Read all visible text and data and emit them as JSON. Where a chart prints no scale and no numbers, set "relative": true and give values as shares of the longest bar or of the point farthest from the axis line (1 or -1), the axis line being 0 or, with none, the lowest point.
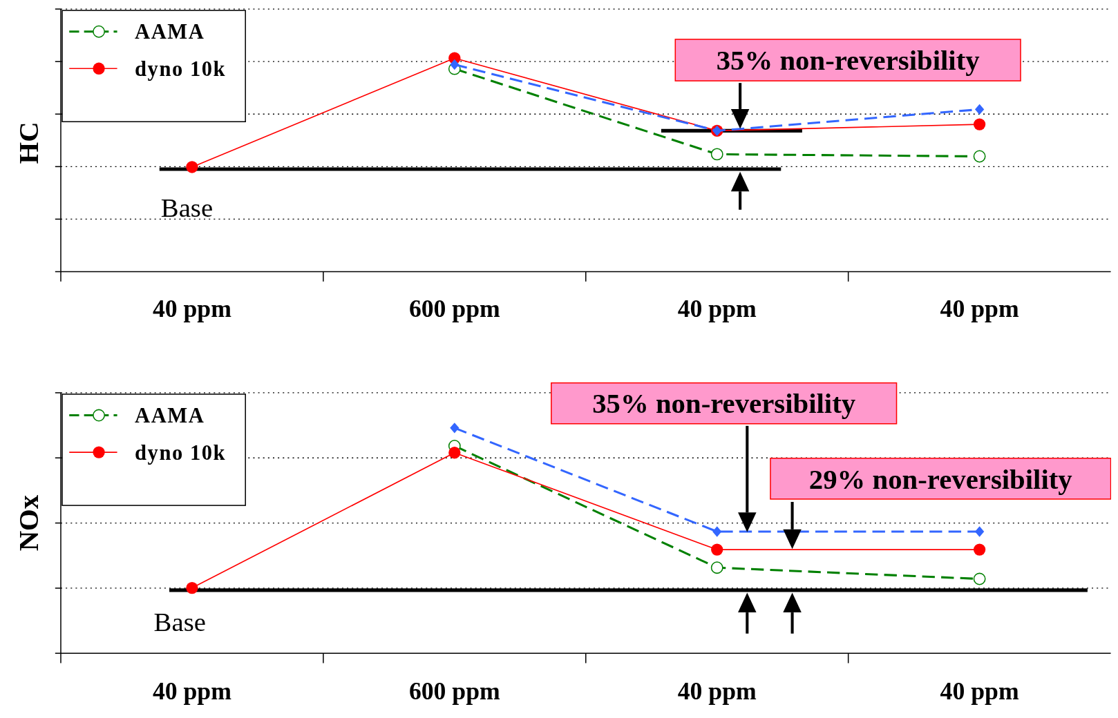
{
  "chart_data": [
    {
      "type": "line",
      "ylabel": "HC",
      "categories": [
        "40 ppm",
        "600 ppm",
        "40 ppm",
        "40 ppm"
      ],
      "relative": true,
      "grid": "y",
      "legend": "top left",
      "series": [
        {
          "name": "AAMA",
          "color": "#008000",
          "marker": "circle-open",
          "line_style": "dashed",
          "values": [
            null,
            0.95,
            0.55,
            0.54
          ]
        },
        {
          "name": "dyno 10k",
          "color": "#ff0000",
          "marker": "circle",
          "line_style": "solid",
          "values": [
            0.49,
            1,
            0.66,
            0.69
          ]
        },
        {
          "color": "#3366ff",
          "marker": "diamond",
          "line_style": "dashed",
          "values": [
            null,
            0.97,
            0.66,
            0.76
          ]
        }
      ],
      "ref_lines": [
        {
          "axis": "y",
          "value": 0.48,
          "label": "Base",
          "color": "#000000"
        },
        {
          "axis": "y",
          "value": 0.66,
          "color": "#000000"
        }
      ],
      "annotations": [
        "35% non-reversibility"
      ]
    },
    {
      "type": "line",
      "ylabel": "NOx",
      "categories": [
        "40 ppm",
        "600 ppm",
        "40 ppm",
        "40 ppm"
      ],
      "relative": true,
      "grid": "y",
      "legend": "top left",
      "series": [
        {
          "name": "AAMA",
          "color": "#008000",
          "marker": "circle-open",
          "line_style": "dashed",
          "values": [
            null,
            0.92,
            0.38,
            0.33
          ]
        },
        {
          "name": "dyno 10k",
          "color": "#ff0000",
          "marker": "circle",
          "line_style": "solid",
          "values": [
            0.29,
            0.89,
            0.46,
            0.46
          ]
        },
        {
          "color": "#3366ff",
          "marker": "diamond",
          "line_style": "dashed",
          "values": [
            null,
            1,
            0.54,
            0.54
          ]
        }
      ],
      "ref_lines": [
        {
          "axis": "y",
          "value": 0.28,
          "label": "Base",
          "color": "#000000"
        }
      ],
      "annotations": [
        "35% non-reversibility",
        "29% non-reversibility"
      ]
    }
  ]
}
